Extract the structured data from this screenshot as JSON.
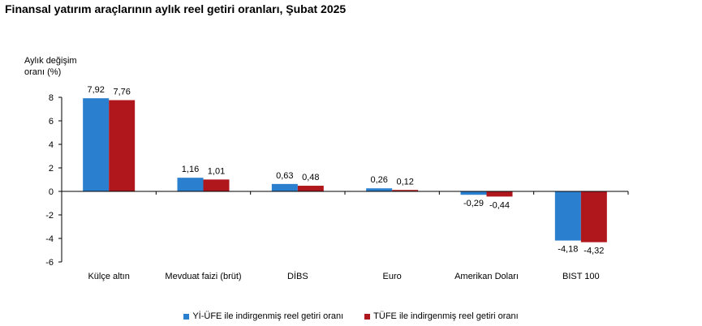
{
  "title": "Finansal yatırım araçlarının aylık reel getiri oranları, Şubat 2025",
  "chart_data": {
    "type": "bar",
    "title": "Finansal yatırım araçlarının aylık reel getiri oranları, Şubat 2025",
    "ylabel_lines": [
      "Aylık değişim",
      "oranı (%)"
    ],
    "categories": [
      "Külçe altın",
      "Mevduat faizi (brüt)",
      "DİBS",
      "Euro",
      "Amerikan Doları",
      "BIST 100"
    ],
    "series": [
      {
        "name": "Yİ-ÜFE ile indirgenmiş reel getiri oranı",
        "color": "#2a7fce",
        "values": [
          7.92,
          1.16,
          0.63,
          0.26,
          -0.29,
          -4.18
        ],
        "labels": [
          "7,92",
          "1,16",
          "0,63",
          "0,26",
          "-0,29",
          "-4,18"
        ]
      },
      {
        "name": "TÜFE ile indirgenmiş reel getiri oranı",
        "color": "#b0171c",
        "values": [
          7.76,
          1.01,
          0.48,
          0.12,
          -0.44,
          -4.32
        ],
        "labels": [
          "7,76",
          "1,01",
          "0,48",
          "0,12",
          "-0,44",
          "-4,32"
        ]
      }
    ],
    "yticks": [
      8,
      6,
      4,
      2,
      0,
      -2,
      -4,
      -6
    ],
    "ylim": [
      -6,
      8
    ],
    "grid": false,
    "legend_position": "bottom"
  }
}
